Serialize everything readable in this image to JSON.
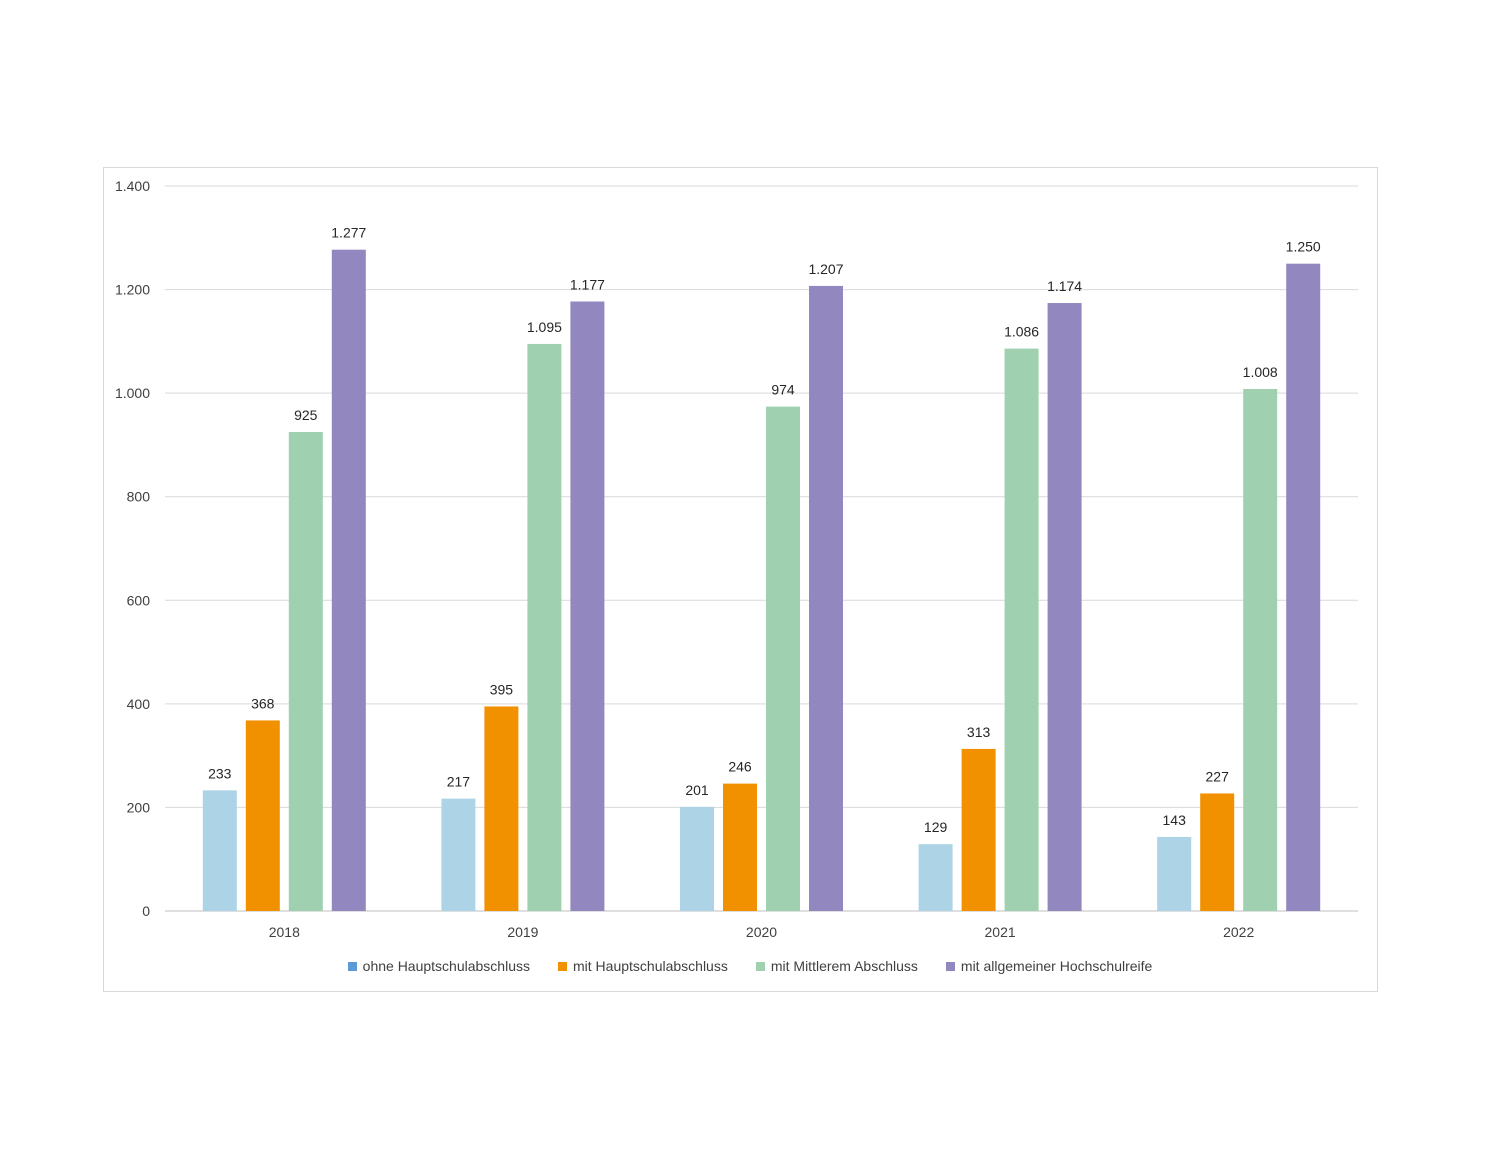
{
  "chart_data": {
    "type": "bar",
    "categories": [
      "2018",
      "2019",
      "2020",
      "2021",
      "2022"
    ],
    "series": [
      {
        "name": "ohne Hauptschulabschluss",
        "color": "#acd4e6",
        "legend_color": "#5b9bd5",
        "values": [
          233,
          217,
          201,
          129,
          143
        ],
        "labels": [
          "233",
          "217",
          "201",
          "129",
          "143"
        ]
      },
      {
        "name": "mit Hauptschulabschluss",
        "color": "#f29100",
        "legend_color": "#f29100",
        "values": [
          368,
          395,
          246,
          313,
          227
        ],
        "labels": [
          "368",
          "395",
          "246",
          "313",
          "227"
        ]
      },
      {
        "name": "mit Mittlerem Abschluss",
        "color": "#9fd1b0",
        "legend_color": "#9fd1b0",
        "values": [
          925,
          1095,
          974,
          1086,
          1008
        ],
        "labels": [
          "925",
          "1.095",
          "974",
          "1.086",
          "1.008"
        ]
      },
      {
        "name": "mit allgemeiner Hochschulreife",
        "color": "#9287be",
        "legend_color": "#9287be",
        "values": [
          1277,
          1177,
          1207,
          1174,
          1250
        ],
        "labels": [
          "1.277",
          "1.177",
          "1.207",
          "1.174",
          "1.250"
        ]
      }
    ],
    "ylim": [
      0,
      1400
    ],
    "yticks": [
      0,
      200,
      400,
      600,
      800,
      1000,
      1200,
      1400
    ],
    "ytick_labels": [
      "0",
      "200",
      "400",
      "600",
      "800",
      "1.000",
      "1.200",
      "1.400"
    ],
    "grid": true,
    "legend_position": "bottom",
    "title": "",
    "xlabel": "",
    "ylabel": ""
  }
}
